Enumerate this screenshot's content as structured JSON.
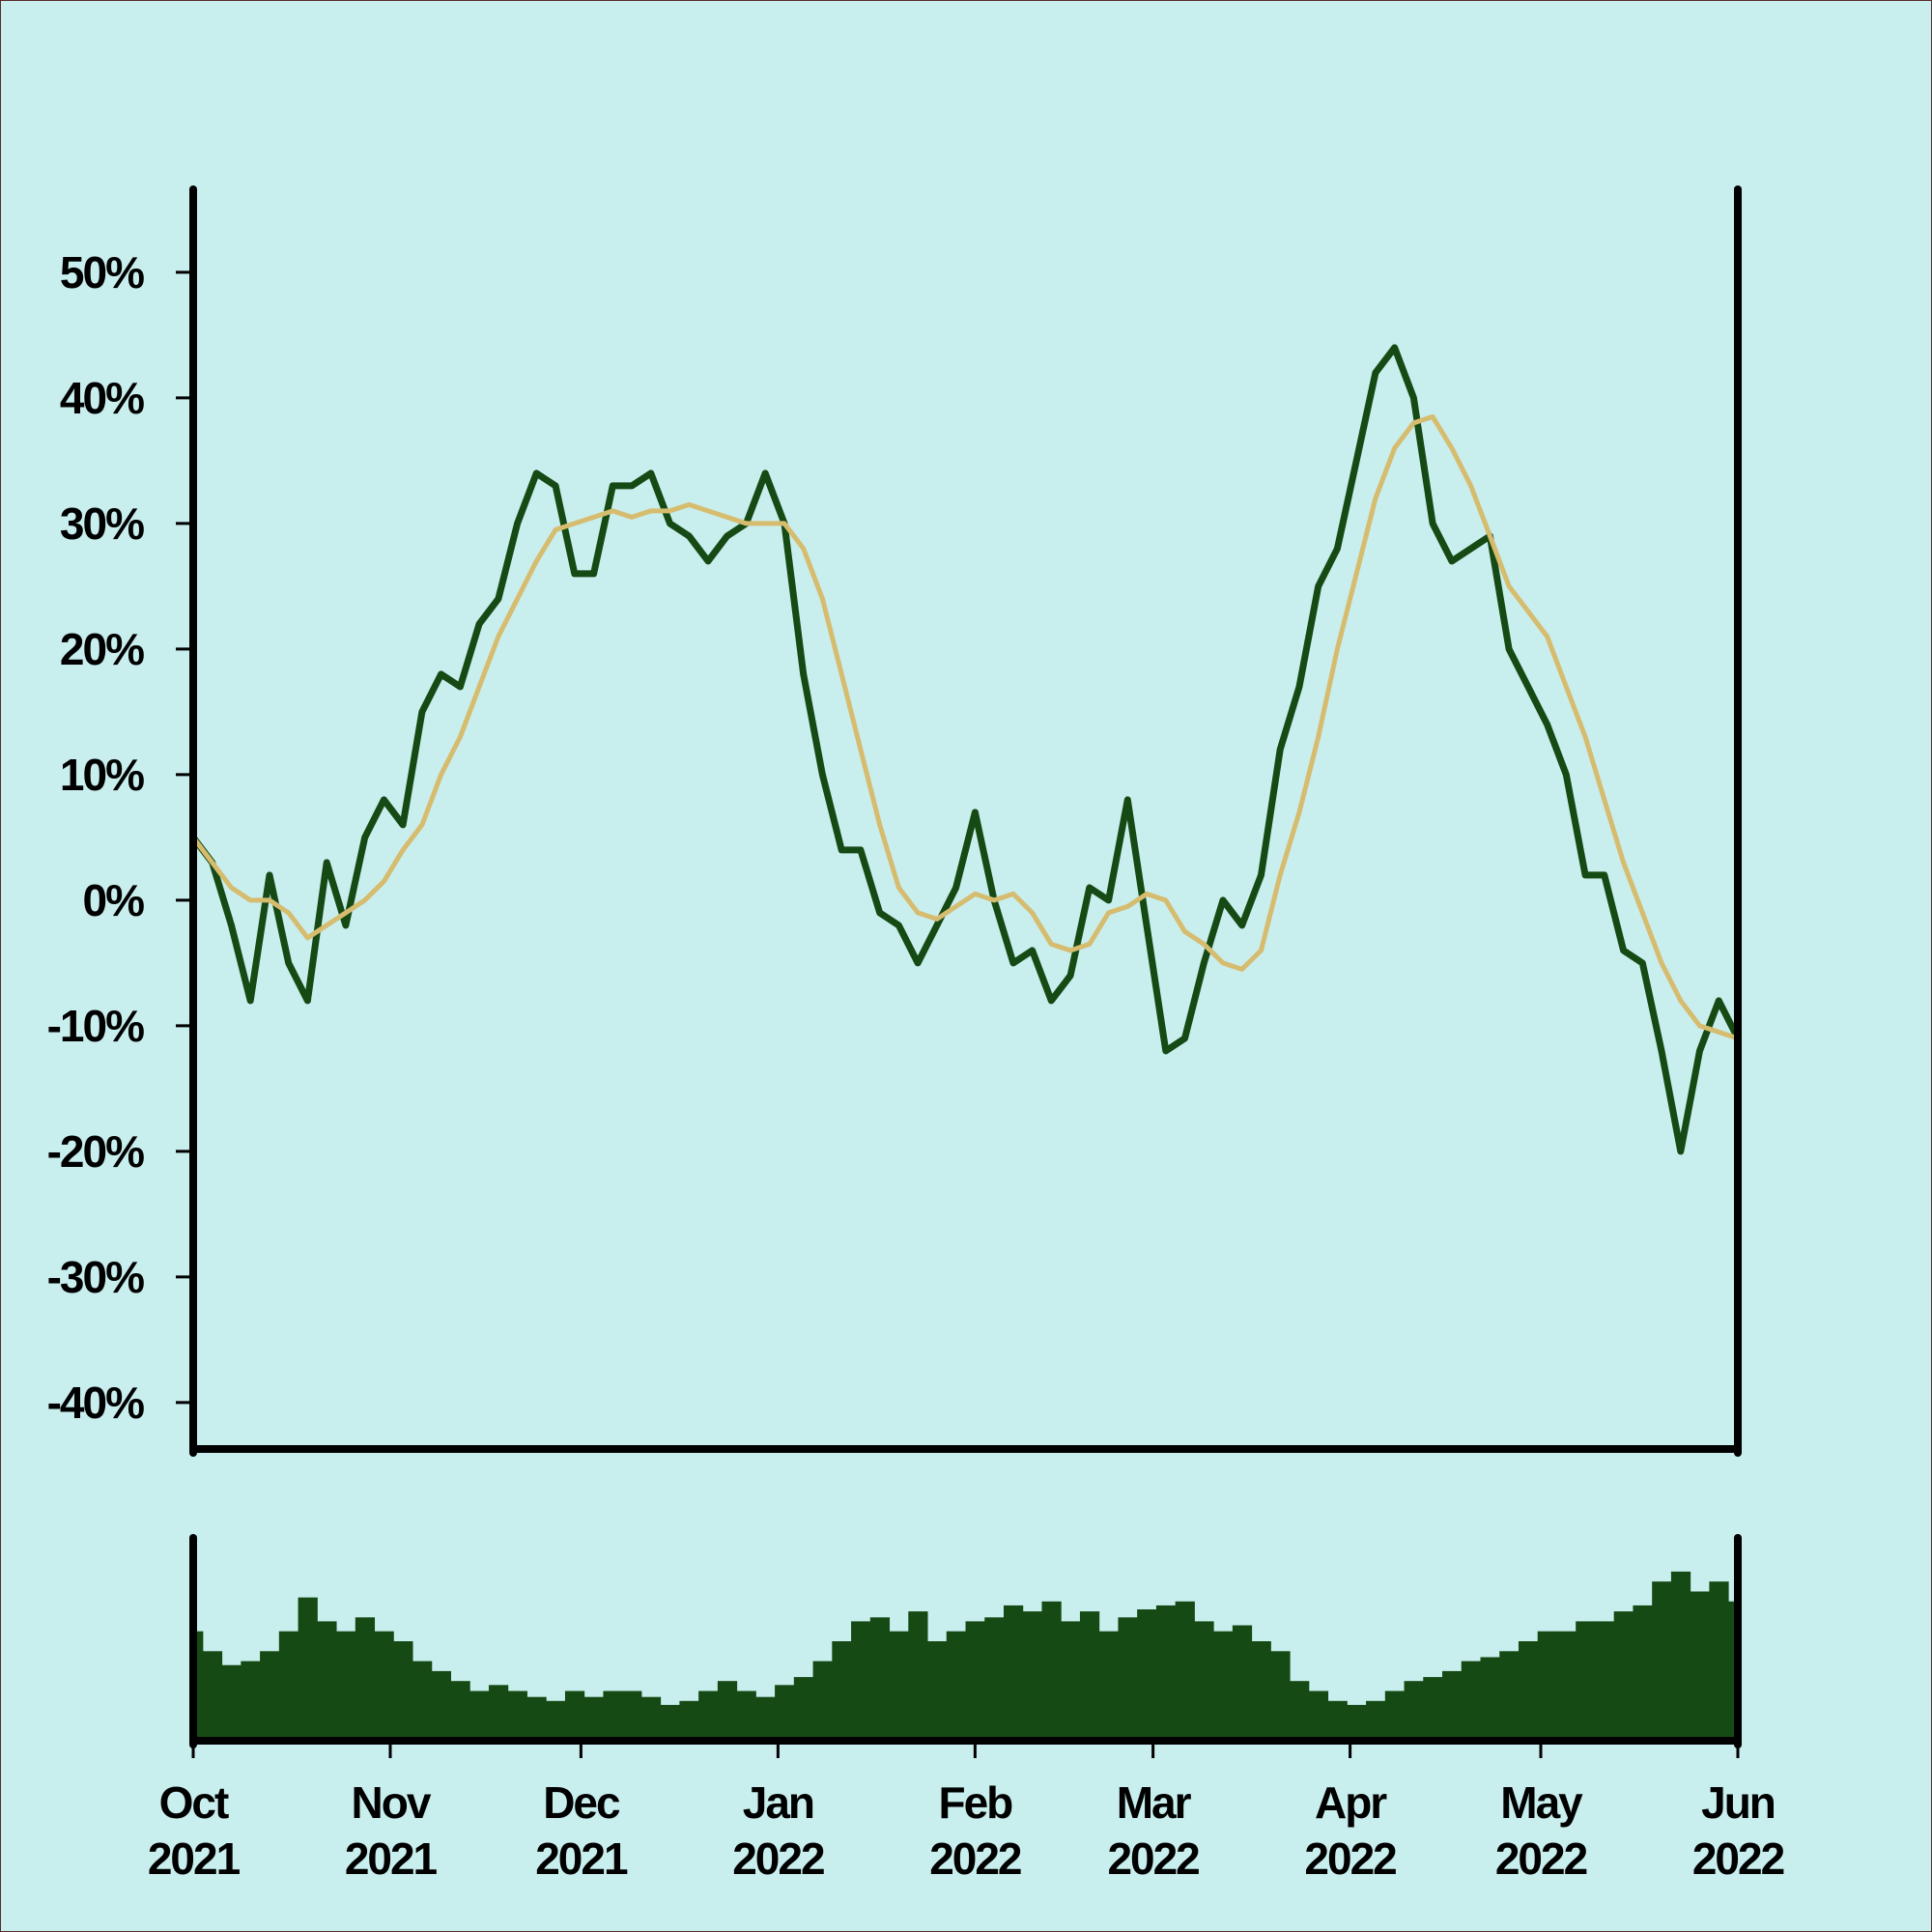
{
  "chart_data": [
    {
      "type": "line",
      "x": [
        "2021-10-01",
        "2021-10-04",
        "2021-10-07",
        "2021-10-10",
        "2021-10-13",
        "2021-10-16",
        "2021-10-19",
        "2021-10-22",
        "2021-10-25",
        "2021-10-28",
        "2021-10-31",
        "2021-11-03",
        "2021-11-06",
        "2021-11-09",
        "2021-11-12",
        "2021-11-15",
        "2021-11-18",
        "2021-11-21",
        "2021-11-24",
        "2021-11-27",
        "2021-11-30",
        "2021-12-03",
        "2021-12-06",
        "2021-12-09",
        "2021-12-12",
        "2021-12-15",
        "2021-12-18",
        "2021-12-21",
        "2021-12-24",
        "2021-12-27",
        "2021-12-30",
        "2022-01-02",
        "2022-01-05",
        "2022-01-08",
        "2022-01-11",
        "2022-01-14",
        "2022-01-17",
        "2022-01-20",
        "2022-01-23",
        "2022-01-26",
        "2022-01-29",
        "2022-02-01",
        "2022-02-04",
        "2022-02-07",
        "2022-02-10",
        "2022-02-13",
        "2022-02-16",
        "2022-02-19",
        "2022-02-22",
        "2022-02-25",
        "2022-02-28",
        "2022-03-03",
        "2022-03-06",
        "2022-03-09",
        "2022-03-12",
        "2022-03-15",
        "2022-03-18",
        "2022-03-21",
        "2022-03-24",
        "2022-03-27",
        "2022-03-30",
        "2022-04-02",
        "2022-04-05",
        "2022-04-08",
        "2022-04-11",
        "2022-04-14",
        "2022-04-17",
        "2022-04-20",
        "2022-04-23",
        "2022-04-26",
        "2022-04-29",
        "2022-05-02",
        "2022-05-05",
        "2022-05-08",
        "2022-05-11",
        "2022-05-14",
        "2022-05-17",
        "2022-05-20",
        "2022-05-23",
        "2022-05-26",
        "2022-05-29",
        "2022-06-01"
      ],
      "series": [
        {
          "color": "#164a14",
          "values": [
            5,
            3,
            -2,
            -8,
            2,
            -5,
            -8,
            3,
            -2,
            5,
            8,
            6,
            15,
            18,
            17,
            22,
            24,
            30,
            34,
            33,
            26,
            26,
            33,
            33,
            34,
            30,
            29,
            27,
            29,
            30,
            34,
            30,
            18,
            10,
            4,
            4,
            -1,
            -2,
            -5,
            -2,
            1,
            7,
            0,
            -5,
            -4,
            -8,
            -6,
            1,
            0,
            8,
            -2,
            -12,
            -11,
            -5,
            0,
            -2,
            2,
            12,
            17,
            25,
            28,
            35,
            42,
            44,
            40,
            30,
            27,
            28,
            29,
            20,
            17,
            14,
            10,
            2,
            2,
            -4,
            -5,
            -12,
            -20,
            -12,
            -8,
            -11
          ]
        },
        {
          "color": "#d6bc6e",
          "values": [
            5,
            3,
            1,
            0,
            0,
            -1,
            -3,
            -2,
            -1,
            0,
            1.5,
            4,
            6,
            10,
            13,
            17,
            21,
            24,
            27,
            29.5,
            30,
            30.5,
            31,
            30.5,
            31,
            31,
            31.5,
            31,
            30.5,
            30,
            30,
            30,
            28,
            24,
            18,
            12,
            6,
            1,
            -1,
            -1.5,
            -0.5,
            0.5,
            0,
            0.5,
            -1,
            -3.5,
            -4,
            -3.5,
            -1,
            -0.5,
            0.5,
            0,
            -2.5,
            -3.5,
            -5,
            -5.5,
            -4,
            2,
            7,
            13,
            20,
            26,
            32,
            36,
            38,
            38.5,
            36,
            33,
            29,
            25,
            23,
            21,
            17,
            13,
            8,
            3,
            -1,
            -5,
            -8,
            -10,
            -10.5,
            -11
          ]
        }
      ],
      "xlim": [
        "2021-10-01",
        "2022-06-01"
      ],
      "ylim": [
        -43.7,
        56.3
      ],
      "yticks": [
        {
          "value": -40,
          "label": "-40%"
        },
        {
          "value": -30,
          "label": "-30%"
        },
        {
          "value": -20,
          "label": "-20%"
        },
        {
          "value": -10,
          "label": "-10%"
        },
        {
          "value": 0,
          "label": "0%"
        },
        {
          "value": 10,
          "label": "10%"
        },
        {
          "value": 20,
          "label": "20%"
        },
        {
          "value": 30,
          "label": "30%"
        },
        {
          "value": 40,
          "label": "40%"
        },
        {
          "value": 50,
          "label": "50%"
        }
      ]
    },
    {
      "type": "bar",
      "x": [
        "2021-10-01",
        "2021-10-04",
        "2021-10-07",
        "2021-10-10",
        "2021-10-13",
        "2021-10-16",
        "2021-10-19",
        "2021-10-22",
        "2021-10-25",
        "2021-10-28",
        "2021-10-31",
        "2021-11-03",
        "2021-11-06",
        "2021-11-09",
        "2021-11-12",
        "2021-11-15",
        "2021-11-18",
        "2021-11-21",
        "2021-11-24",
        "2021-11-27",
        "2021-11-30",
        "2021-12-03",
        "2021-12-06",
        "2021-12-09",
        "2021-12-12",
        "2021-12-15",
        "2021-12-18",
        "2021-12-21",
        "2021-12-24",
        "2021-12-27",
        "2021-12-30",
        "2022-01-02",
        "2022-01-05",
        "2022-01-08",
        "2022-01-11",
        "2022-01-14",
        "2022-01-17",
        "2022-01-20",
        "2022-01-23",
        "2022-01-26",
        "2022-01-29",
        "2022-02-01",
        "2022-02-04",
        "2022-02-07",
        "2022-02-10",
        "2022-02-13",
        "2022-02-16",
        "2022-02-19",
        "2022-02-22",
        "2022-02-25",
        "2022-02-28",
        "2022-03-03",
        "2022-03-06",
        "2022-03-09",
        "2022-03-12",
        "2022-03-15",
        "2022-03-18",
        "2022-03-21",
        "2022-03-24",
        "2022-03-27",
        "2022-03-30",
        "2022-04-02",
        "2022-04-05",
        "2022-04-08",
        "2022-04-11",
        "2022-04-14",
        "2022-04-17",
        "2022-04-20",
        "2022-04-23",
        "2022-04-26",
        "2022-04-29",
        "2022-05-02",
        "2022-05-05",
        "2022-05-08",
        "2022-05-11",
        "2022-05-14",
        "2022-05-17",
        "2022-05-20",
        "2022-05-23",
        "2022-05-26",
        "2022-05-29",
        "2022-06-01"
      ],
      "values": [
        55,
        45,
        38,
        40,
        45,
        55,
        72,
        60,
        55,
        62,
        55,
        50,
        40,
        35,
        30,
        25,
        28,
        25,
        22,
        20,
        25,
        22,
        25,
        25,
        22,
        18,
        20,
        25,
        30,
        25,
        22,
        28,
        32,
        40,
        50,
        60,
        62,
        55,
        65,
        50,
        55,
        60,
        62,
        68,
        65,
        70,
        60,
        65,
        55,
        62,
        66,
        68,
        70,
        60,
        55,
        58,
        50,
        45,
        30,
        25,
        20,
        18,
        20,
        25,
        30,
        32,
        35,
        40,
        42,
        45,
        50,
        55,
        55,
        60,
        60,
        65,
        68,
        80,
        85,
        75,
        80,
        70
      ],
      "color": "#164a14",
      "xlim": [
        "2021-10-01",
        "2022-06-01"
      ],
      "ylim": [
        0,
        100
      ],
      "xticks": [
        {
          "value": "2021-10-01",
          "label": "Oct\n2021"
        },
        {
          "value": "2021-11-01",
          "label": "Nov\n2021"
        },
        {
          "value": "2021-12-01",
          "label": "Dec\n2021"
        },
        {
          "value": "2022-01-01",
          "label": "Jan\n2022"
        },
        {
          "value": "2022-02-01",
          "label": "Feb\n2022"
        },
        {
          "value": "2022-03-01",
          "label": "Mar\n2022"
        },
        {
          "value": "2022-04-01",
          "label": "Apr\n2022"
        },
        {
          "value": "2022-05-01",
          "label": "May\n2022"
        },
        {
          "value": "2022-06-01",
          "label": "Jun\n2022"
        }
      ]
    }
  ]
}
